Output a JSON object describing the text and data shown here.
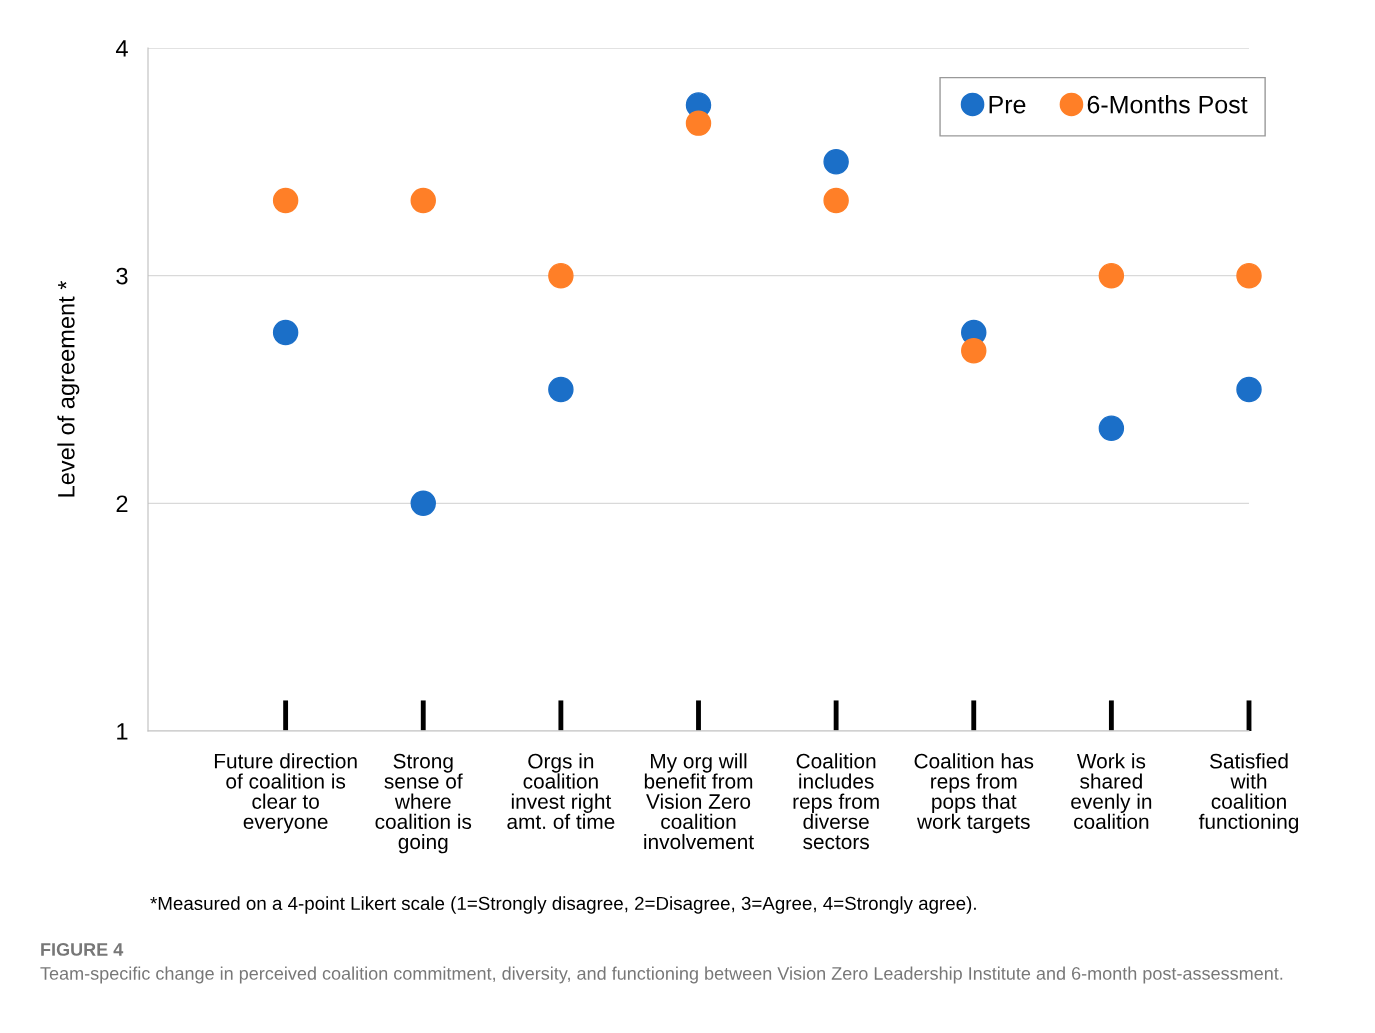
{
  "chart_data": {
    "type": "scatter",
    "ylabel": "Level of agreement *",
    "categories": [
      "Future direction\nof coalition is\nclear to\neveryone",
      "Strong\nsense of\nwhere\ncoalition is\ngoing",
      "Orgs in\ncoalition\ninvest right\namt. of time",
      "My org will\nbenefit from\nVision Zero\ncoalition\ninvolvement",
      "Coalition\nincludes\nreps from\ndiverse\nsectors",
      "Coalition has\nreps from\npops that\nwork targets",
      "Work is\nshared\nevenly in\ncoalition",
      "Satisfied\nwith\ncoalition\nfunctioning"
    ],
    "series": [
      {
        "name": "Pre",
        "color": "#1b6fc8",
        "values": [
          2.75,
          2.0,
          2.5,
          3.75,
          3.5,
          2.75,
          2.33,
          2.5
        ]
      },
      {
        "name": "6-Months Post",
        "color": "#ff7f27",
        "values": [
          3.33,
          3.33,
          3.0,
          3.67,
          3.33,
          2.67,
          3.0,
          3.0
        ]
      }
    ],
    "ylim": [
      1,
      4
    ],
    "yticks": [
      1,
      2,
      3,
      4
    ],
    "grid": "y",
    "legend": "top right",
    "marker": "circle",
    "annotations": [
      "*Measured on a 4-point Likert scale (1=Strongly disagree, 2=Disagree, 3=Agree, 4=Strongly agree).",
      "FIGURE 4",
      "Team-specific change in perceived coalition commitment, diversity, and functioning between Vision Zero Leadership Institute and 6-month post-assessment."
    ]
  }
}
